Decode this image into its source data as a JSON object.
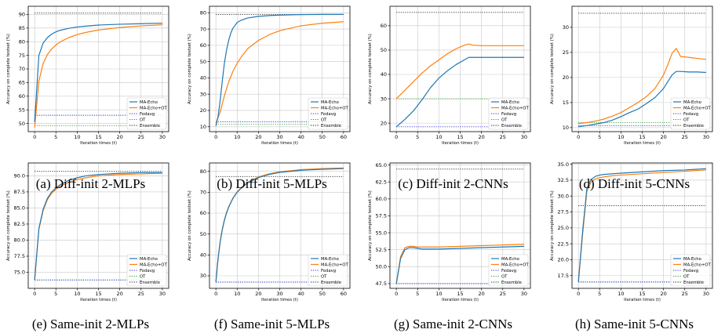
{
  "legend_labels": [
    "MA-Echo",
    "MA-Echo+OT",
    "Fedavg",
    "OT",
    "Ensemble"
  ],
  "colors": {
    "ma_echo": "#1f77b4",
    "ma_echo_ot": "#ff7f0e",
    "fedavg": "#2a2ad6",
    "ot": "#2ca02c",
    "ensemble": "#222222",
    "grid": "#c8c8c8"
  },
  "chart_data": [
    {
      "type": "line",
      "caption": "(a) Diff-init 2-MLPs",
      "xlabel": "Iteration times (t)",
      "ylabel": "Accuracy on complete testset (%)",
      "xlim": [
        -1.5,
        31.5
      ],
      "ylim": [
        47,
        93
      ],
      "xticks": [
        0,
        5,
        10,
        15,
        20,
        25,
        30
      ],
      "yticks": [
        50,
        55,
        60,
        65,
        70,
        75,
        80,
        85,
        90
      ],
      "grid": true,
      "legend": "lower-right",
      "series": [
        {
          "name": "MA-Echo",
          "x": [
            0,
            1,
            2,
            3,
            4,
            5,
            6,
            8,
            10,
            12,
            15,
            20,
            25,
            30
          ],
          "y": [
            50.5,
            75,
            79.5,
            81.5,
            82.8,
            83.6,
            84.2,
            84.9,
            85.4,
            85.7,
            86.1,
            86.4,
            86.6,
            86.8
          ]
        },
        {
          "name": "MA-Echo+OT",
          "x": [
            0,
            1,
            2,
            3,
            4,
            5,
            6,
            8,
            10,
            12,
            15,
            20,
            25,
            30
          ],
          "y": [
            48.5,
            65.5,
            72,
            75.3,
            77.3,
            78.8,
            79.9,
            81.5,
            82.6,
            83.4,
            84.3,
            85.2,
            85.8,
            86.2
          ]
        },
        {
          "name": "Fedavg",
          "value": 53
        },
        {
          "name": "OT",
          "value": 49.2
        },
        {
          "name": "Ensemble",
          "value": 90.5
        }
      ]
    },
    {
      "type": "line",
      "caption": "(b) Diff-init 5-MLPs",
      "xlabel": "Iteration times (t)",
      "ylabel": "Accuracy on complete testset (%)",
      "xlim": [
        -3,
        63
      ],
      "ylim": [
        7,
        84
      ],
      "xticks": [
        0,
        10,
        20,
        30,
        40,
        50,
        60
      ],
      "yticks": [
        10,
        20,
        30,
        40,
        50,
        60,
        70,
        80
      ],
      "grid": true,
      "legend": "lower-right",
      "series": [
        {
          "name": "MA-Echo",
          "x": [
            0,
            1,
            2,
            3,
            4,
            5,
            6,
            7,
            8,
            10,
            12,
            15,
            20,
            25,
            30,
            40,
            50,
            60
          ],
          "y": [
            10.5,
            16,
            26,
            38,
            49,
            57,
            63,
            67.5,
            70.5,
            74,
            75.5,
            76.8,
            77.8,
            78.3,
            78.6,
            78.9,
            79,
            79
          ]
        },
        {
          "name": "MA-Echo+OT",
          "x": [
            0,
            2,
            4,
            6,
            8,
            10,
            12,
            15,
            20,
            25,
            30,
            40,
            50,
            60
          ],
          "y": [
            12,
            19,
            29,
            37.5,
            44,
            49,
            53,
            58,
            63,
            66.5,
            69,
            72,
            73.6,
            74.5
          ]
        },
        {
          "name": "Fedavg",
          "value": 13
        },
        {
          "name": "OT",
          "value": 11.5
        },
        {
          "name": "Ensemble",
          "value": 79
        }
      ]
    },
    {
      "type": "line",
      "caption": "(c) Diff-init 2-CNNs",
      "xlabel": "Iteration times (t)",
      "ylabel": "Accuracy on complete testset (%)",
      "xlim": [
        -1.5,
        31.5
      ],
      "ylim": [
        16.5,
        68
      ],
      "xticks": [
        0,
        5,
        10,
        15,
        20,
        25,
        30
      ],
      "yticks": [
        20,
        30,
        40,
        50,
        60
      ],
      "grid": true,
      "legend": "lower-right",
      "series": [
        {
          "name": "MA-Echo",
          "x": [
            0,
            2,
            4,
            6,
            8,
            10,
            12,
            14,
            16,
            17,
            18,
            20,
            25,
            30
          ],
          "y": [
            18.5,
            21.5,
            25,
            29.5,
            34.5,
            38.5,
            41.5,
            44,
            46,
            47,
            47,
            47,
            47,
            47
          ]
        },
        {
          "name": "MA-Echo+OT",
          "x": [
            0,
            2,
            4,
            6,
            8,
            10,
            12,
            14,
            16,
            17,
            18,
            20,
            25,
            30
          ],
          "y": [
            30,
            33.5,
            37,
            40.5,
            43.5,
            46,
            48.5,
            50.5,
            52,
            52.5,
            52,
            51.8,
            51.8,
            51.8
          ]
        },
        {
          "name": "Fedavg",
          "value": 18.5
        },
        {
          "name": "OT",
          "value": 30
        },
        {
          "name": "Ensemble",
          "value": 65.5
        }
      ]
    },
    {
      "type": "line",
      "caption": "(d) Diff-init 5-CNNs",
      "xlabel": "Iteration times (t)",
      "ylabel": "Accuracy on complete testset (%)",
      "xlim": [
        -1.5,
        31.5
      ],
      "ylim": [
        9.2,
        34.2
      ],
      "xticks": [
        0,
        5,
        10,
        15,
        20,
        25,
        30
      ],
      "yticks": [
        10,
        15,
        20,
        25,
        30
      ],
      "grid": true,
      "legend": "lower-right",
      "series": [
        {
          "name": "MA-Echo",
          "x": [
            0,
            2,
            4,
            6,
            8,
            10,
            12,
            14,
            16,
            18,
            20,
            22,
            23,
            24,
            26,
            28,
            30
          ],
          "y": [
            10.2,
            10.4,
            10.7,
            11,
            11.5,
            12.2,
            13,
            13.7,
            14.8,
            16,
            17.8,
            20.5,
            21.2,
            21.2,
            21.1,
            21.1,
            21
          ]
        },
        {
          "name": "MA-Echo+OT",
          "x": [
            0,
            2,
            4,
            6,
            8,
            10,
            12,
            14,
            16,
            18,
            20,
            21,
            22,
            23,
            23.5,
            24,
            26,
            28,
            30
          ],
          "y": [
            10.8,
            11,
            11.3,
            11.7,
            12.3,
            13,
            14,
            15,
            16.2,
            17.8,
            20.5,
            22.5,
            24.8,
            25.8,
            25,
            24.2,
            24,
            23.8,
            23.6
          ]
        },
        {
          "name": "Fedavg",
          "value": 10.4
        },
        {
          "name": "OT",
          "value": 11
        },
        {
          "name": "Ensemble",
          "value": 32.8
        }
      ]
    },
    {
      "type": "line",
      "caption": "(e) Same-init 2-MLPs",
      "xlabel": "Iteration times (t)",
      "ylabel": "Accuracy on complete testset (%)",
      "xlim": [
        -1.5,
        31.5
      ],
      "ylim": [
        72.5,
        92
      ],
      "xticks": [
        0,
        5,
        10,
        15,
        20,
        25,
        30
      ],
      "yticks": [
        75.0,
        77.5,
        80.0,
        82.5,
        85.0,
        87.5,
        90.0
      ],
      "grid": true,
      "legend": "lower-right",
      "series": [
        {
          "name": "MA-Echo",
          "x": [
            0,
            1,
            2,
            3,
            4,
            5,
            6,
            8,
            10,
            12,
            15,
            20,
            25,
            30
          ],
          "y": [
            73.8,
            81.8,
            84.8,
            86.5,
            87.5,
            88.1,
            88.6,
            89.3,
            89.7,
            90,
            90.2,
            90.4,
            90.5,
            90.5
          ]
        },
        {
          "name": "MA-Echo+OT",
          "x": [
            0,
            1,
            2,
            3,
            4,
            5,
            6,
            8,
            10,
            12,
            15,
            20,
            25,
            30
          ],
          "y": [
            73.8,
            81.7,
            84.6,
            86.3,
            87.3,
            87.9,
            88.4,
            89,
            89.4,
            89.7,
            90,
            90.2,
            90.3,
            90.4
          ]
        },
        {
          "name": "Fedavg",
          "value": 73.8
        },
        {
          "name": "OT",
          "value": 73.8
        },
        {
          "name": "Ensemble",
          "value": 90.7
        }
      ]
    },
    {
      "type": "line",
      "caption": "(f) Same-init 5-MLPs",
      "xlabel": "Iteration times (t)",
      "ylabel": "Accuracy on complete testset (%)",
      "xlim": [
        -3,
        63
      ],
      "ylim": [
        24,
        84
      ],
      "xticks": [
        0,
        10,
        20,
        30,
        40,
        50,
        60
      ],
      "yticks": [
        30,
        40,
        50,
        60,
        70,
        80
      ],
      "grid": true,
      "legend": "lower-right",
      "series": [
        {
          "name": "MA-Echo",
          "x": [
            0,
            1,
            2,
            3,
            4,
            5,
            6,
            8,
            10,
            12,
            15,
            20,
            25,
            30,
            40,
            50,
            60
          ],
          "y": [
            27,
            38,
            46,
            52,
            56.5,
            60,
            62.8,
            67,
            70,
            72,
            74.5,
            77,
            78.5,
            79.5,
            80.5,
            81,
            81.3
          ]
        },
        {
          "name": "MA-Echo+OT",
          "x": [
            0,
            1,
            2,
            3,
            4,
            5,
            6,
            8,
            10,
            12,
            15,
            20,
            25,
            30,
            40,
            50,
            60
          ],
          "y": [
            27,
            38.2,
            46.3,
            52.3,
            56.8,
            60.3,
            63,
            67.2,
            70.2,
            72.3,
            74.8,
            77.3,
            78.8,
            79.8,
            80.8,
            81.3,
            81.6
          ]
        },
        {
          "name": "Fedavg",
          "value": 27
        },
        {
          "name": "OT",
          "value": 27
        },
        {
          "name": "Ensemble",
          "value": 77.5
        }
      ]
    },
    {
      "type": "line",
      "caption": "(g) Same-init 2-CNNs",
      "xlabel": "Iteration times (t)",
      "ylabel": "Accuracy on complete testset (%)",
      "xlim": [
        -1.5,
        31.5
      ],
      "ylim": [
        46.8,
        65.3
      ],
      "xticks": [
        0,
        5,
        10,
        15,
        20,
        25,
        30
      ],
      "yticks": [
        47.5,
        50.0,
        52.5,
        55.0,
        57.5,
        60.0,
        62.5,
        65.0
      ],
      "grid": true,
      "legend": "lower-right",
      "series": [
        {
          "name": "MA-Echo",
          "x": [
            0,
            1,
            2,
            3,
            4,
            5,
            6,
            8,
            10,
            15,
            20,
            25,
            30
          ],
          "y": [
            47.5,
            51.2,
            52.5,
            52.8,
            52.8,
            52.7,
            52.6,
            52.6,
            52.6,
            52.7,
            52.8,
            52.9,
            53
          ]
        },
        {
          "name": "MA-Echo+OT",
          "x": [
            0,
            1,
            2,
            3,
            4,
            5,
            6,
            8,
            10,
            15,
            20,
            25,
            30
          ],
          "y": [
            47.5,
            51.5,
            52.8,
            53,
            53,
            52.9,
            52.9,
            52.9,
            52.9,
            53,
            53.1,
            53.2,
            53.3
          ]
        },
        {
          "name": "Fedavg",
          "value": 47.5
        },
        {
          "name": "OT",
          "value": 47.5
        },
        {
          "name": "Ensemble",
          "value": 64.4
        }
      ]
    },
    {
      "type": "line",
      "caption": "(h) Same-init 5-CNNs",
      "xlabel": "Iteration times (t)",
      "ylabel": "Accuracy on complete testset (%)",
      "xlim": [
        -1.5,
        31.5
      ],
      "ylim": [
        15.5,
        35.2
      ],
      "xticks": [
        0,
        5,
        10,
        15,
        20,
        25,
        30
      ],
      "yticks": [
        17.5,
        20.0,
        22.5,
        25.0,
        27.5,
        30.0,
        32.5,
        35.0
      ],
      "grid": true,
      "legend": "lower-right",
      "series": [
        {
          "name": "MA-Echo",
          "x": [
            0,
            1,
            2,
            3,
            4,
            5,
            6,
            8,
            10,
            15,
            20,
            25,
            30
          ],
          "y": [
            16.5,
            24.5,
            31.2,
            32.6,
            33.1,
            33.3,
            33.4,
            33.5,
            33.6,
            33.8,
            34,
            34.1,
            34.3
          ]
        },
        {
          "name": "MA-Echo+OT",
          "x": [
            0,
            1,
            2,
            3,
            4,
            5,
            6,
            8,
            10,
            15,
            20,
            25,
            30
          ],
          "y": [
            16.5,
            24,
            30.8,
            32.2,
            32.7,
            32.9,
            33,
            33.2,
            33.3,
            33.5,
            33.7,
            33.9,
            34.1
          ]
        },
        {
          "name": "Fedavg",
          "value": 16.5
        },
        {
          "name": "OT",
          "value": 16.5
        },
        {
          "name": "Ensemble",
          "value": 28.5
        }
      ]
    }
  ]
}
